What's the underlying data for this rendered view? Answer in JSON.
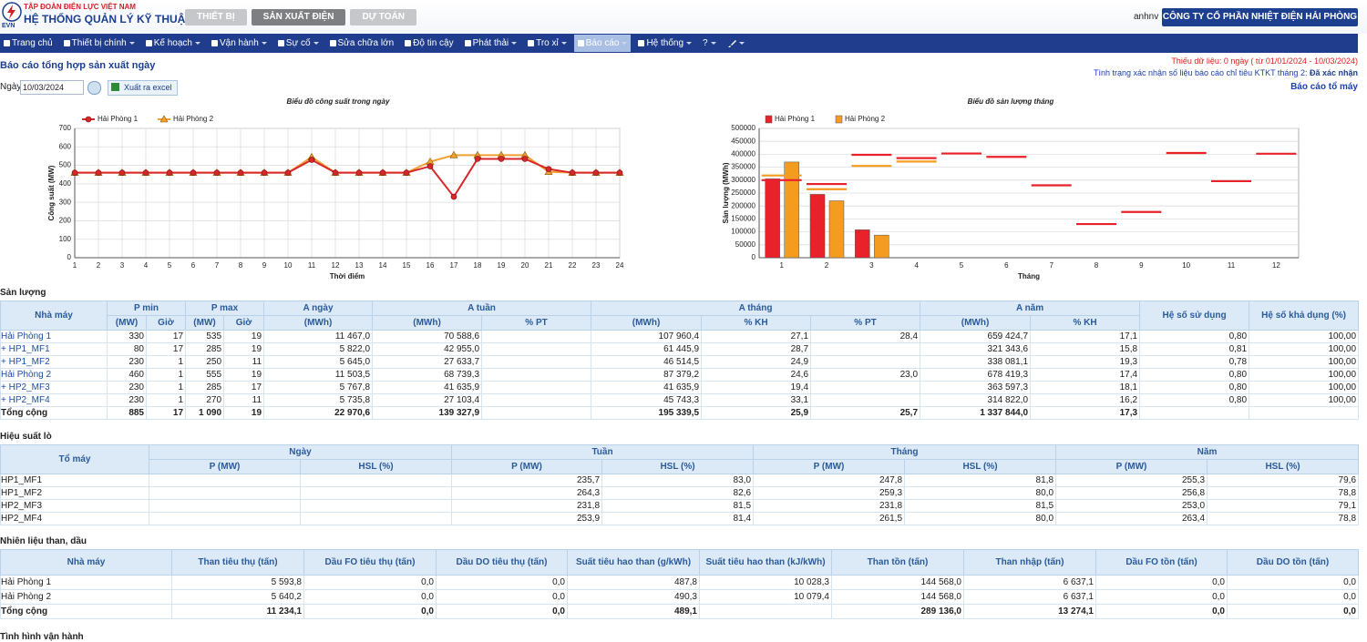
{
  "header": {
    "group": "TẬP ĐOÀN ĐIỆN LỰC VIỆT NAM",
    "system": "HỆ THỐNG QUẢN LÝ KỸ THUẬT",
    "logo": "EVN",
    "tabs": [
      "THIẾT BỊ",
      "SẢN XUẤT ĐIỆN",
      "DỰ TOÁN"
    ],
    "active_tab": 1,
    "user": "anhnv",
    "company": "CÔNG TY CỔ PHẦN NHIỆT ĐIỆN HẢI PHÒNG"
  },
  "menu": {
    "items": [
      "Trang chủ",
      "Thiết bị chính",
      "Kế hoạch",
      "Vận hành",
      "Sự cố",
      "Sửa chữa lớn",
      "Độ tin cậy",
      "Phát thải",
      "Tro xỉ",
      "Báo cáo",
      "Hệ thống",
      "?"
    ],
    "active": 9
  },
  "report": {
    "title": "Báo cáo tổng hợp sản xuất ngày",
    "date_label": "Ngày",
    "date": "10/03/2024",
    "export": "Xuất ra excel",
    "missing_data": "Thiếu dữ liệu: 0 ngày ( từ 01/01/2024 - 10/03/2024)",
    "confirm_status": "Tình trạng xác nhận số liệu báo cáo chỉ tiêu KTKT tháng 2:",
    "confirm_value": "Đã xác nhận",
    "unit_report_link": "Báo cáo tổ máy"
  },
  "chart_data": [
    {
      "type": "line",
      "title": "Biểu đồ công suất trong ngày",
      "x_label": "Thời điểm",
      "y_label": "Công suất (MW)",
      "categories": [
        "1",
        "2",
        "3",
        "4",
        "5",
        "6",
        "7",
        "8",
        "9",
        "10",
        "11",
        "12",
        "13",
        "14",
        "15",
        "16",
        "17",
        "18",
        "19",
        "20",
        "21",
        "22",
        "23",
        "24"
      ],
      "ylim": [
        0,
        700
      ],
      "yticks": [
        0,
        100,
        200,
        300,
        400,
        500,
        600,
        700
      ],
      "grid": true,
      "series": [
        {
          "name": "Hải Phòng 1",
          "color": "#d9262a",
          "marker": "circle",
          "values": [
            460,
            460,
            460,
            460,
            460,
            460,
            460,
            460,
            460,
            460,
            530,
            460,
            460,
            460,
            460,
            495,
            330,
            535,
            535,
            535,
            480,
            460,
            460,
            460
          ]
        },
        {
          "name": "Hải Phòng 2",
          "color": "#f0a030",
          "marker": "triangle",
          "values": [
            460,
            460,
            460,
            460,
            460,
            460,
            460,
            460,
            460,
            460,
            545,
            460,
            460,
            460,
            460,
            520,
            555,
            555,
            555,
            555,
            465,
            460,
            460,
            460
          ]
        }
      ]
    },
    {
      "type": "bar",
      "title": "Biểu đồ sản lượng tháng",
      "x_label": "Tháng",
      "y_label": "Sản lượng (MWh)",
      "categories": [
        "1",
        "2",
        "3",
        "4",
        "5",
        "6",
        "7",
        "8",
        "9",
        "10",
        "11",
        "12"
      ],
      "ylim": [
        0,
        500000
      ],
      "yticks": [
        0,
        50000,
        100000,
        150000,
        200000,
        250000,
        300000,
        350000,
        400000,
        450000,
        500000
      ],
      "grid": true,
      "series": [
        {
          "name": "Hải Phòng 1",
          "color": "#e8212a",
          "values": [
            305000,
            245000,
            107960,
            0,
            0,
            0,
            0,
            0,
            0,
            0,
            0,
            0
          ]
        },
        {
          "name": "Hải Phòng 2",
          "color": "#f39c1f",
          "values": [
            370000,
            220000,
            87379,
            0,
            0,
            0,
            0,
            0,
            0,
            0,
            0,
            0
          ]
        }
      ],
      "plan_markers": [
        {
          "color": "#e8212a",
          "values": [
            300000,
            285000,
            398000,
            385000,
            403000,
            390000,
            280000,
            130000,
            177000,
            405000,
            296000,
            402000
          ]
        },
        {
          "color": "#f39c1f",
          "values": [
            318000,
            265000,
            355000,
            372000,
            null,
            null,
            null,
            null,
            null,
            null,
            null,
            null
          ]
        }
      ]
    }
  ],
  "tables": [
    {
      "title": "Sản lượng",
      "total_row": true,
      "link_names": true,
      "header_rows": [
        [
          "Nhà máy",
          "P min",
          "P max",
          "A ngày",
          "A tuần",
          "A tháng",
          "A năm",
          "Hệ số sử dụng",
          "Hệ số khả dụng (%)"
        ],
        [
          "(MW)",
          "Giờ",
          "(MW)",
          "Giờ",
          "(MWh)",
          "(MWh)",
          "% PT",
          "(MWh)",
          "% KH",
          "% PT",
          "(MWh)",
          "% KH"
        ]
      ],
      "rows": [
        [
          "Hải Phòng 1",
          "330",
          "17",
          "535",
          "19",
          "11 467,0",
          "70 588,6",
          null,
          "107 960,4",
          "27,1",
          "28,4",
          "659 424,7",
          "17,1",
          "0,80",
          "100,00"
        ],
        [
          "+ HP1_MF1",
          "80",
          "17",
          "285",
          "19",
          "5 822,0",
          "42 955,0",
          null,
          "61 445,9",
          "28,7",
          null,
          "321 343,6",
          "15,8",
          "0,81",
          "100,00"
        ],
        [
          "+ HP1_MF2",
          "230",
          "1",
          "250",
          "11",
          "5 645,0",
          "27 633,7",
          null,
          "46 514,5",
          "24,9",
          null,
          "338 081,1",
          "19,3",
          "0,78",
          "100,00"
        ],
        [
          "Hải Phòng 2",
          "460",
          "1",
          "555",
          "19",
          "11 503,5",
          "68 739,3",
          null,
          "87 379,2",
          "24,6",
          "23,0",
          "678 419,3",
          "17,4",
          "0,80",
          "100,00"
        ],
        [
          "+ HP2_MF3",
          "230",
          "1",
          "285",
          "17",
          "5 767,8",
          "41 635,9",
          null,
          "41 635,9",
          "19,4",
          null,
          "363 597,3",
          "18,1",
          "0,80",
          "100,00"
        ],
        [
          "+ HP2_MF4",
          "230",
          "1",
          "270",
          "11",
          "5 735,8",
          "27 103,4",
          null,
          "45 743,3",
          "33,1",
          null,
          "314 822,0",
          "16,2",
          "0,80",
          "100,00"
        ],
        [
          "Tổng cộng",
          "885",
          "17",
          "1 090",
          "19",
          "22 970,6",
          "139 327,9",
          null,
          "195 339,5",
          "25,9",
          "25,7",
          "1 337 844,0",
          "17,3",
          null,
          null
        ]
      ]
    },
    {
      "title": "Hiệu suất lò",
      "total_row": false,
      "link_names": false,
      "header_rows": [
        [
          "Tổ máy",
          "Ngày",
          "Tuần",
          "Tháng",
          "Năm"
        ],
        [
          "P (MW)",
          "HSL (%)",
          "P (MW)",
          "HSL (%)",
          "P (MW)",
          "HSL (%)",
          "P (MW)",
          "HSL (%)"
        ]
      ],
      "rows": [
        [
          "HP1_MF1",
          null,
          null,
          "235,7",
          "83,0",
          "247,8",
          "81,8",
          "255,3",
          "79,6"
        ],
        [
          "HP1_MF2",
          null,
          null,
          "264,3",
          "82,6",
          "259,3",
          "80,0",
          "256,8",
          "78,8"
        ],
        [
          "HP2_MF3",
          null,
          null,
          "231,8",
          "81,5",
          "231,8",
          "81,5",
          "253,0",
          "79,1"
        ],
        [
          "HP2_MF4",
          null,
          null,
          "253,9",
          "81,4",
          "261,5",
          "80,0",
          "263,4",
          "78,8"
        ]
      ]
    },
    {
      "title": "Nhiên liệu than, dầu",
      "total_row": true,
      "link_names": false,
      "header_rows": [
        [
          "Nhà máy",
          "Than tiêu thụ (tấn)",
          "Dầu FO tiêu thụ (tấn)",
          "Dầu DO tiêu thụ (tấn)",
          "Suất tiêu hao than (g/kWh)",
          "Suất tiêu hao than (kJ/kWh)",
          "Than tồn (tấn)",
          "Than nhập (tấn)",
          "Dầu FO tồn (tấn)",
          "Dầu DO tồn (tấn)"
        ]
      ],
      "rows": [
        [
          "Hải Phòng 1",
          "5 593,8",
          "0,0",
          "0,0",
          "487,8",
          "10 028,3",
          "144 568,0",
          "6 637,1",
          "0,0",
          "0,0"
        ],
        [
          "Hải Phòng 2",
          "5 640,2",
          "0,0",
          "0,0",
          "490,3",
          "10 079,4",
          "144 568,0",
          "6 637,1",
          "0,0",
          "0,0"
        ],
        [
          "Tổng cộng",
          "11 234,1",
          "0,0",
          "0,0",
          "489,1",
          null,
          "289 136,0",
          "13 274,1",
          "0,0",
          "0,0"
        ]
      ]
    }
  ],
  "footer_section": "Tình hình vận hành"
}
